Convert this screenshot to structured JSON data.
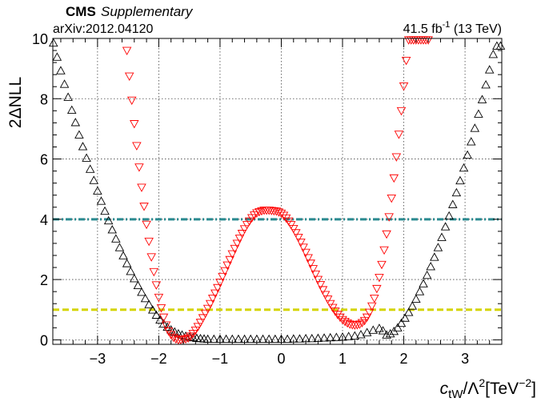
{
  "header": {
    "experiment": "CMS",
    "label": "Supplementary",
    "arxiv": "arXiv:2012.04120",
    "lumi_value": "41.5 fb",
    "lumi_exp": "-1",
    "lumi_energy": " (13 TeV)"
  },
  "chart_data": {
    "type": "scatter",
    "xlabel": {
      "main": "c",
      "sub": "tW",
      "mid": "/Λ",
      "sup1": "2",
      "bracket": "[TeV",
      "sup2": "−2",
      "close": "]"
    },
    "ylabel": "2ΔNLL",
    "xlim": [
      -3.73,
      3.6
    ],
    "ylim": [
      -0.15,
      10
    ],
    "xticks": [
      -3,
      -2,
      -1,
      0,
      1,
      2,
      3
    ],
    "xtick_labels": [
      "−3",
      "−2",
      "−1",
      "0",
      "1",
      "2",
      "3"
    ],
    "yticks": [
      0,
      2,
      4,
      6,
      8,
      10
    ],
    "ytick_labels": [
      "0",
      "2",
      "4",
      "6",
      "8",
      "10"
    ],
    "grid": true,
    "reference_lines": [
      {
        "y": 4,
        "color": "#2a8a90",
        "style": "dash-dot"
      },
      {
        "y": 1,
        "color": "#d4d400",
        "style": "dashed"
      }
    ],
    "series": [
      {
        "marker": "triangle-up",
        "color": "#000000",
        "x": [
          -3.72,
          -3.66,
          -3.6,
          -3.54,
          -3.48,
          -3.42,
          -3.36,
          -3.3,
          -3.24,
          -3.18,
          -3.12,
          -3.06,
          -3.0,
          -2.94,
          -2.88,
          -2.82,
          -2.76,
          -2.7,
          -2.64,
          -2.58,
          -2.52,
          -2.46,
          -2.4,
          -2.34,
          -2.28,
          -2.22,
          -2.16,
          -2.1,
          -2.04,
          -1.98,
          -1.92,
          -1.86,
          -1.8,
          -1.74,
          -1.68,
          -1.62,
          -1.56,
          -1.5,
          -1.44,
          -1.38,
          -1.32,
          -1.26,
          -1.2,
          -1.1,
          -1.0,
          -0.9,
          -0.8,
          -0.7,
          -0.6,
          -0.5,
          -0.4,
          -0.3,
          -0.2,
          -0.1,
          0.0,
          0.1,
          0.2,
          0.3,
          0.4,
          0.5,
          0.6,
          0.7,
          0.8,
          0.9,
          1.0,
          1.1,
          1.2,
          1.3,
          1.4,
          1.5,
          1.6,
          1.66,
          1.72,
          1.78,
          1.84,
          1.9,
          1.96,
          2.02,
          2.08,
          2.14,
          2.2,
          2.26,
          2.32,
          2.38,
          2.44,
          2.5,
          2.56,
          2.62,
          2.68,
          2.74,
          2.8,
          2.86,
          2.92,
          2.98,
          3.04,
          3.1,
          3.16,
          3.22,
          3.28,
          3.34,
          3.4,
          3.46,
          3.52,
          3.58
        ],
        "y": [
          9.85,
          9.38,
          8.93,
          8.48,
          8.05,
          7.62,
          7.21,
          6.8,
          6.41,
          6.03,
          5.66,
          5.29,
          4.94,
          4.6,
          4.27,
          3.95,
          3.65,
          3.35,
          3.06,
          2.79,
          2.53,
          2.27,
          2.03,
          1.8,
          1.58,
          1.37,
          1.17,
          0.99,
          0.82,
          0.66,
          0.53,
          0.42,
          0.33,
          0.26,
          0.2,
          0.16,
          0.12,
          0.09,
          0.07,
          0.05,
          0.04,
          0.03,
          0.02,
          0.02,
          0.02,
          0.02,
          0.02,
          0.02,
          0.02,
          0.02,
          0.02,
          0.02,
          0.02,
          0.02,
          0.02,
          0.02,
          0.03,
          0.03,
          0.04,
          0.04,
          0.05,
          0.06,
          0.07,
          0.08,
          0.09,
          0.11,
          0.13,
          0.17,
          0.24,
          0.32,
          0.38,
          0.3,
          0.16,
          0.2,
          0.28,
          0.4,
          0.55,
          0.72,
          0.91,
          1.12,
          1.35,
          1.6,
          1.86,
          2.14,
          2.43,
          2.74,
          3.06,
          3.4,
          3.75,
          4.11,
          4.49,
          4.88,
          5.28,
          5.7,
          6.13,
          6.57,
          7.02,
          7.49,
          7.97,
          8.46,
          8.96,
          9.47,
          9.75,
          9.75
        ]
      },
      {
        "marker": "triangle-down",
        "color": "#ff0000",
        "x": [
          -2.52,
          -2.48,
          -2.44,
          -2.4,
          -2.36,
          -2.32,
          -2.28,
          -2.24,
          -2.2,
          -2.16,
          -2.12,
          -2.08,
          -2.04,
          -2.0,
          -1.96,
          -1.92,
          -1.88,
          -1.84,
          -1.8,
          -1.76,
          -1.72,
          -1.68,
          -1.64,
          -1.6,
          -1.56,
          -1.52,
          -1.48,
          -1.44,
          -1.4,
          -1.36,
          -1.32,
          -1.28,
          -1.24,
          -1.2,
          -1.16,
          -1.12,
          -1.08,
          -1.04,
          -1.0,
          -0.96,
          -0.92,
          -0.88,
          -0.84,
          -0.8,
          -0.76,
          -0.72,
          -0.68,
          -0.64,
          -0.6,
          -0.56,
          -0.52,
          -0.48,
          -0.44,
          -0.4,
          -0.36,
          -0.32,
          -0.28,
          -0.24,
          -0.2,
          -0.16,
          -0.12,
          -0.08,
          -0.04,
          0.0,
          0.04,
          0.08,
          0.12,
          0.16,
          0.2,
          0.24,
          0.28,
          0.32,
          0.36,
          0.4,
          0.44,
          0.48,
          0.52,
          0.56,
          0.6,
          0.64,
          0.68,
          0.72,
          0.76,
          0.8,
          0.84,
          0.88,
          0.92,
          0.96,
          1.0,
          1.04,
          1.08,
          1.12,
          1.16,
          1.2,
          1.24,
          1.28,
          1.32,
          1.36,
          1.4,
          1.44,
          1.48,
          1.52,
          1.56,
          1.6,
          1.64,
          1.68,
          1.72,
          1.76,
          1.8,
          1.84,
          1.88,
          1.92,
          1.96,
          2.0,
          2.04,
          2.08,
          2.12,
          2.16,
          2.2,
          2.24,
          2.28,
          2.32,
          2.36,
          2.4
        ],
        "y": [
          9.6,
          8.75,
          7.95,
          7.17,
          6.44,
          5.73,
          5.06,
          4.43,
          3.83,
          3.27,
          2.75,
          2.26,
          1.82,
          1.41,
          1.06,
          0.75,
          0.49,
          0.29,
          0.17,
          0.08,
          0.03,
          0.0,
          0.0,
          0.01,
          0.03,
          0.06,
          0.12,
          0.21,
          0.32,
          0.44,
          0.58,
          0.73,
          0.88,
          1.04,
          1.2,
          1.38,
          1.55,
          1.73,
          1.91,
          2.1,
          2.29,
          2.48,
          2.66,
          2.85,
          3.03,
          3.2,
          3.37,
          3.53,
          3.68,
          3.82,
          3.94,
          4.05,
          4.14,
          4.21,
          4.25,
          4.28,
          4.3,
          4.3,
          4.3,
          4.29,
          4.28,
          4.27,
          4.24,
          4.2,
          4.13,
          4.04,
          3.94,
          3.82,
          3.69,
          3.55,
          3.4,
          3.24,
          3.07,
          2.9,
          2.72,
          2.54,
          2.36,
          2.18,
          2.0,
          1.83,
          1.66,
          1.5,
          1.35,
          1.2,
          1.07,
          0.95,
          0.84,
          0.75,
          0.67,
          0.61,
          0.56,
          0.52,
          0.5,
          0.49,
          0.5,
          0.52,
          0.57,
          0.64,
          0.75,
          0.91,
          1.12,
          1.38,
          1.7,
          2.07,
          2.5,
          2.98,
          3.51,
          4.08,
          4.7,
          5.37,
          6.07,
          6.82,
          7.6,
          8.42,
          9.27,
          9.95,
          9.95,
          9.95,
          9.95,
          9.95,
          9.95,
          9.95,
          9.95,
          9.95
        ]
      }
    ]
  }
}
